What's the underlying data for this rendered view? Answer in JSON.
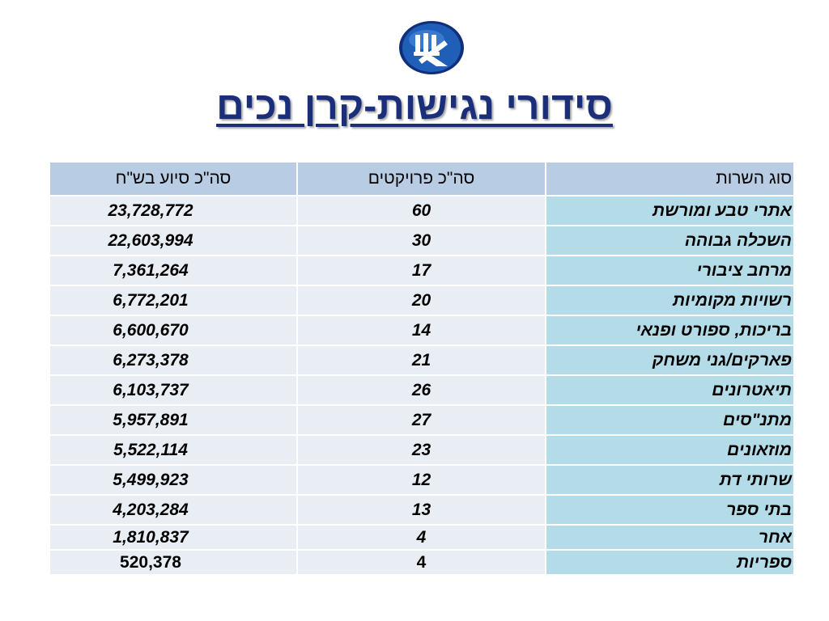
{
  "logo": {
    "icon": "bituah-leumi-logo",
    "fill": "#1f5fb8",
    "ring": "#0f2f7a"
  },
  "title": "סידורי נגישות-קרן נכים",
  "table": {
    "headers": {
      "amount": "סה\"כ סיוע בש\"ח",
      "projects": "סה\"כ פרויקטים",
      "service": "סוג השרות"
    },
    "rows": [
      {
        "service": "אתרי טבע ומורשת",
        "projects": "60",
        "amount": "23,728,772"
      },
      {
        "service": "השכלה גבוהה",
        "projects": "30",
        "amount": "22,603,994"
      },
      {
        "service": "מרחב ציבורי",
        "projects": "17",
        "amount": "7,361,264"
      },
      {
        "service": "רשויות מקומיות",
        "projects": "20",
        "amount": "6,772,201"
      },
      {
        "service": "בריכות, ספורט ופנאי",
        "projects": "14",
        "amount": "6,600,670"
      },
      {
        "service": "פארקים/גני משחק",
        "projects": "21",
        "amount": "6,273,378"
      },
      {
        "service": "תיאטרונים",
        "projects": "26",
        "amount": "6,103,737"
      },
      {
        "service": "מתנ\"סים",
        "projects": "27",
        "amount": "5,957,891"
      },
      {
        "service": "מוזאונים",
        "projects": "23",
        "amount": "5,522,114"
      },
      {
        "service": "שרותי דת",
        "projects": "12",
        "amount": "5,499,923"
      },
      {
        "service": "בתי ספר",
        "projects": "13",
        "amount": "4,203,284"
      },
      {
        "service": "אחר",
        "projects": "4",
        "amount": "1,810,837"
      },
      {
        "service": "ספריות",
        "projects": "4",
        "amount": "520,378"
      }
    ]
  }
}
